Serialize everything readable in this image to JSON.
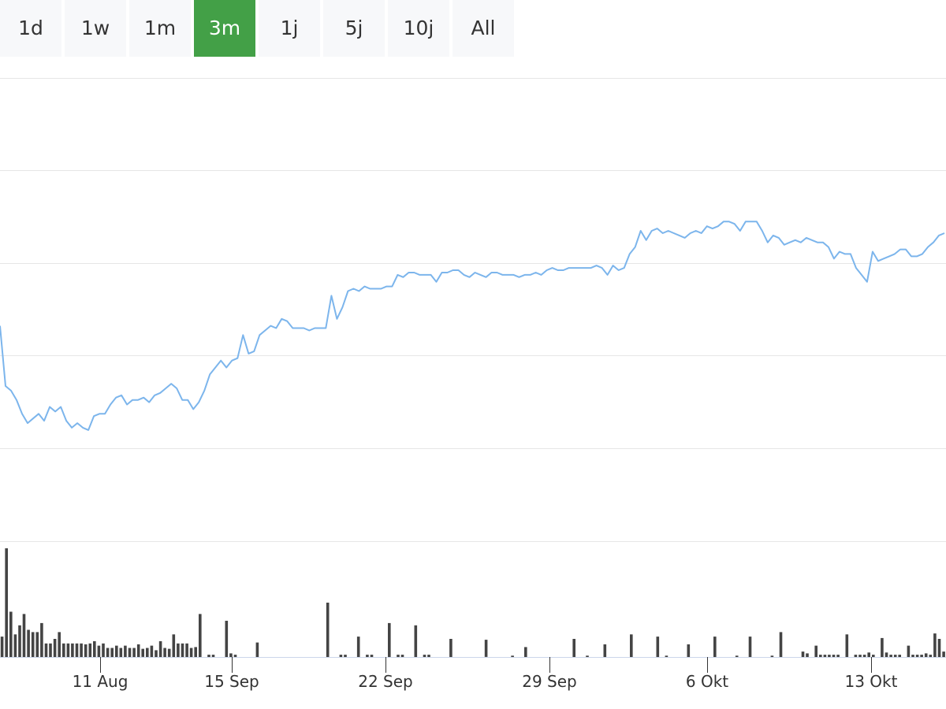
{
  "range_selector": {
    "buttons": [
      {
        "label": "1d",
        "active": false
      },
      {
        "label": "1w",
        "active": false
      },
      {
        "label": "1m",
        "active": false
      },
      {
        "label": "3m",
        "active": true
      },
      {
        "label": "1j",
        "active": false
      },
      {
        "label": "5j",
        "active": false
      },
      {
        "label": "10j",
        "active": false
      },
      {
        "label": "All",
        "active": false
      }
    ],
    "active_color": "#43a047"
  },
  "chart_data": [
    {
      "type": "line",
      "color": "#7cb5ec",
      "grid": true,
      "x_ticks": [
        "11 Aug",
        "15 Sep",
        "22 Sep",
        "29 Sep",
        "6 Okt",
        "13 Okt"
      ],
      "y": [
        61,
        35,
        33,
        29,
        23,
        19,
        21,
        23,
        20,
        26,
        24,
        26,
        20,
        17,
        19,
        17,
        16,
        22,
        23,
        23,
        27,
        30,
        31,
        27,
        29,
        29,
        30,
        28,
        31,
        32,
        34,
        36,
        34,
        29,
        29,
        25,
        28,
        33,
        40,
        43,
        46,
        43,
        46,
        47,
        57,
        49,
        50,
        57,
        59,
        61,
        60,
        64,
        63,
        60,
        60,
        60,
        59,
        60,
        60,
        60,
        74,
        64,
        69,
        76,
        77,
        76,
        78,
        77,
        77,
        77,
        78,
        78,
        83,
        82,
        84,
        84,
        83,
        83,
        83,
        80,
        84,
        84,
        85,
        85,
        83,
        82,
        84,
        83,
        82,
        84,
        84,
        83,
        83,
        83,
        82,
        83,
        83,
        84,
        83,
        85,
        86,
        85,
        85,
        86,
        86,
        86,
        86,
        86,
        87,
        86,
        83,
        87,
        85,
        86,
        92,
        95,
        102,
        98,
        102,
        103,
        101,
        102,
        101,
        100,
        99,
        101,
        102,
        101,
        104,
        103,
        104,
        106,
        106,
        105,
        102,
        106,
        106,
        106,
        102,
        97,
        100,
        99,
        96,
        97,
        98,
        97,
        99,
        98,
        97,
        97,
        95,
        90,
        93,
        92,
        92,
        86,
        83,
        80,
        93,
        89,
        90,
        91,
        92,
        94,
        94,
        91,
        91,
        92,
        95,
        97,
        100,
        101
      ]
    },
    {
      "type": "bar",
      "color": "#444444",
      "values": [
        45,
        240,
        100,
        50,
        70,
        95,
        60,
        55,
        55,
        75,
        30,
        30,
        40,
        55,
        30,
        30,
        30,
        30,
        30,
        28,
        30,
        35,
        25,
        30,
        20,
        20,
        25,
        20,
        25,
        20,
        20,
        28,
        18,
        20,
        25,
        15,
        35,
        20,
        18,
        50,
        30,
        30,
        30,
        20,
        22,
        95,
        0,
        5,
        5,
        0,
        0,
        80,
        8,
        5,
        0,
        0,
        0,
        0,
        32,
        0,
        0,
        0,
        0,
        0,
        0,
        0,
        0,
        0,
        0,
        0,
        0,
        0,
        0,
        0,
        120,
        0,
        0,
        5,
        5,
        0,
        0,
        45,
        0,
        5,
        5,
        0,
        0,
        0,
        75,
        0,
        5,
        5,
        0,
        0,
        70,
        0,
        5,
        5,
        0,
        0,
        0,
        0,
        40,
        0,
        0,
        0,
        0,
        0,
        0,
        0,
        38,
        0,
        0,
        0,
        0,
        0,
        3,
        0,
        0,
        22,
        0,
        0,
        0,
        0,
        0,
        0,
        0,
        0,
        0,
        0,
        40,
        0,
        0,
        3,
        0,
        0,
        0,
        28,
        0,
        0,
        0,
        0,
        0,
        50,
        0,
        0,
        0,
        0,
        0,
        45,
        0,
        3,
        0,
        0,
        0,
        0,
        28,
        0,
        0,
        0,
        0,
        0,
        45,
        0,
        0,
        0,
        0,
        3,
        0,
        0,
        45,
        0,
        0,
        0,
        0,
        3,
        0,
        55,
        0,
        0,
        0,
        0,
        12,
        8,
        0,
        25,
        5,
        5,
        5,
        5,
        5,
        0,
        50,
        0,
        5,
        5,
        5,
        10,
        5,
        0,
        42,
        10,
        5,
        5,
        5,
        0,
        25,
        5,
        5,
        5,
        8,
        5,
        52,
        40,
        12
      ]
    }
  ]
}
